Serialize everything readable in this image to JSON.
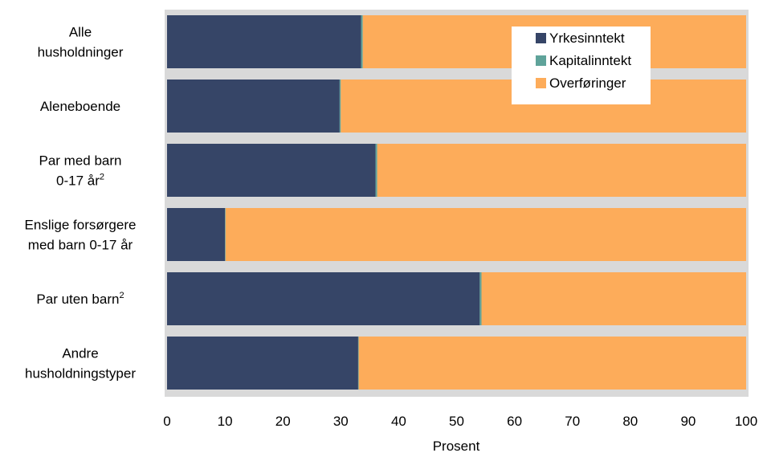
{
  "chart_data": {
    "type": "bar",
    "orientation": "horizontal",
    "stacked": true,
    "categories": [
      [
        "Alle",
        "husholdninger"
      ],
      [
        "Aleneboende"
      ],
      [
        "Par med barn",
        "0-17 år²"
      ],
      [
        "Enslige forsørgere",
        "med barn 0-17 år"
      ],
      [
        "Par uten barn²"
      ],
      [
        "Andre",
        "husholdningstyper"
      ]
    ],
    "series": [
      {
        "name": "Yrkesinntekt",
        "color": "#364567",
        "values": [
          33.5,
          29.8,
          36,
          10,
          54,
          33
        ]
      },
      {
        "name": "Kapitalinntekt",
        "color": "#5fa39a",
        "values": [
          0.3,
          0.2,
          0.3,
          0.1,
          0.3,
          0.1
        ]
      },
      {
        "name": "Overføringer",
        "color": "#fdac5a",
        "values": [
          66.2,
          70,
          63.7,
          89.9,
          45.7,
          66.9
        ]
      }
    ],
    "xlabel": "Prosent",
    "xlim": [
      0,
      100
    ],
    "xticks": [
      0,
      10,
      20,
      30,
      40,
      50,
      60,
      70,
      80,
      90,
      100
    ],
    "legend_position": "top-right",
    "plot_background": "#d9d9d9"
  }
}
